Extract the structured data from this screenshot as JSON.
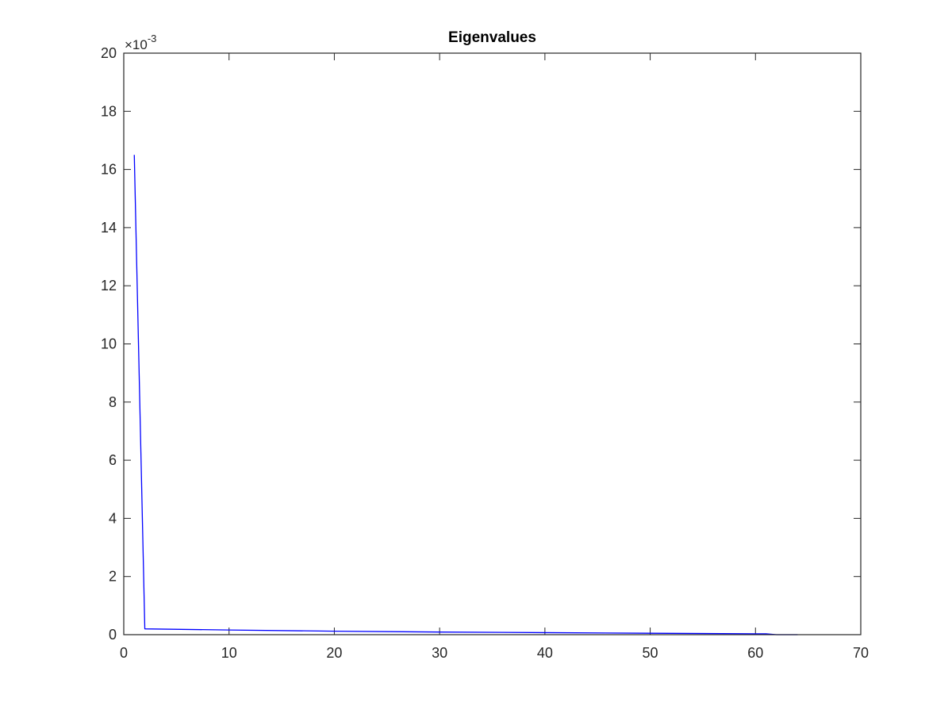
{
  "chart_data": {
    "type": "line",
    "title": "Eigenvalues",
    "xlabel": "",
    "ylabel": "",
    "xlim": [
      0,
      70
    ],
    "ylim": [
      0,
      0.02
    ],
    "y_exponent_label": {
      "prefix": "×10",
      "power": "-3"
    },
    "x_ticks": [
      0,
      10,
      20,
      30,
      40,
      50,
      60,
      70
    ],
    "x_tick_labels": [
      "0",
      "10",
      "20",
      "30",
      "40",
      "50",
      "60",
      "70"
    ],
    "y_ticks": [
      0,
      0.002,
      0.004,
      0.006,
      0.008,
      0.01,
      0.012,
      0.014,
      0.016,
      0.018,
      0.02
    ],
    "y_tick_labels": [
      "0",
      "2",
      "4",
      "6",
      "8",
      "10",
      "12",
      "14",
      "16",
      "18",
      "20"
    ],
    "grid": false,
    "legend": "none",
    "series": [
      {
        "color": "#0000ff",
        "x": [
          1,
          2,
          10,
          20,
          30,
          40,
          50,
          60,
          61,
          62,
          64
        ],
        "y": [
          0.0165,
          0.0002,
          0.00016,
          0.00012,
          9e-05,
          7e-05,
          5e-05,
          3e-05,
          3e-05,
          0.0,
          0.0
        ]
      }
    ]
  }
}
